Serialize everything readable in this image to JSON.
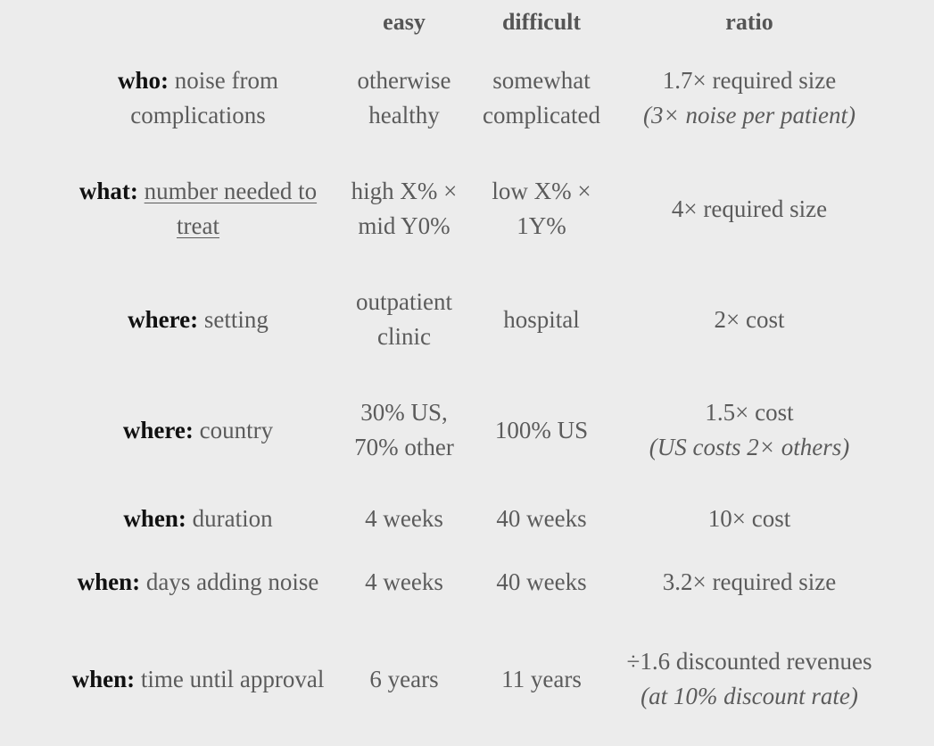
{
  "header": {
    "easy": "easy",
    "difficult": "difficult",
    "ratio": "ratio"
  },
  "rows": [
    {
      "label_key": "who:",
      "label_desc": " noise from complications",
      "easy": "otherwise healthy",
      "difficult": "somewhat complicated",
      "ratio": "1.7× required size",
      "ratio_note": "(3× noise per patient)"
    },
    {
      "label_key": "what:",
      "label_link": "number needed to treat",
      "easy": "high X% × mid Y0%",
      "difficult": "low X% × 1Y%",
      "ratio": "4× required size"
    },
    {
      "label_key": "where:",
      "label_desc": " setting",
      "easy": "outpatient clinic",
      "difficult": "hospital",
      "ratio": "2× cost"
    },
    {
      "label_key": "where:",
      "label_desc": " country",
      "easy": "30% US, 70% other",
      "difficult": "100% US",
      "ratio": "1.5× cost",
      "ratio_note": "(US costs 2× others)"
    },
    {
      "label_key": "when:",
      "label_desc": " duration",
      "easy": "4 weeks",
      "difficult": "40 weeks",
      "ratio": "10× cost"
    },
    {
      "label_key": "when:",
      "label_desc": " days adding noise",
      "easy": "4 weeks",
      "difficult": "40 weeks",
      "ratio": "3.2× required size"
    },
    {
      "label_key": "when:",
      "label_desc": " time until approval",
      "easy": "6 years",
      "difficult": "11 years",
      "ratio": "÷1.6 discounted revenues",
      "ratio_note": "(at 10% discount rate)"
    }
  ]
}
